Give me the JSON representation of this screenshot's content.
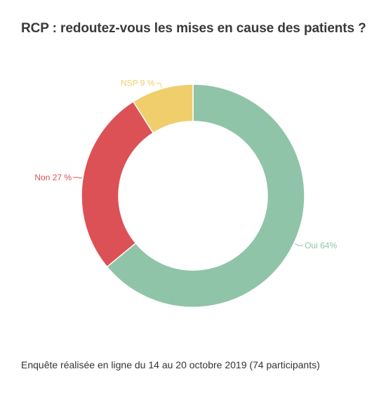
{
  "header": {
    "title": "RCP : redoutez-vous les mises en cause des patients ?"
  },
  "footer": {
    "note": "Enquête réalisée en ligne du 14 au 20 octobre 2019 (74 participants)"
  },
  "chart_data": {
    "type": "pie",
    "title": "RCP : redoutez-vous les mises en cause des patients ?",
    "categories": [
      "Oui",
      "Non",
      "NSP"
    ],
    "values": [
      64,
      27,
      9
    ],
    "labels": [
      "Oui 64%",
      "Non 27 %",
      "NSP 9 %"
    ],
    "colors": [
      "#8fc4a8",
      "#dc5155",
      "#f0ce6c"
    ],
    "donut": true
  }
}
